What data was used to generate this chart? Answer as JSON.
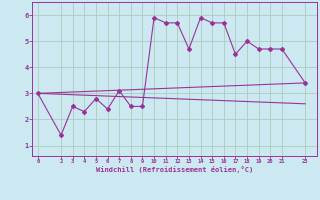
{
  "xlabel": "Windchill (Refroidissement éolien,°C)",
  "bg_color": "#cce8f0",
  "line_color": "#993399",
  "grid_color": "#aaccbb",
  "series1_x": [
    0,
    2,
    3,
    4,
    5,
    6,
    7,
    8,
    9,
    10,
    11,
    12,
    13,
    14,
    15,
    16,
    17,
    18,
    19,
    20,
    21,
    23
  ],
  "series1_y": [
    3.0,
    1.4,
    2.5,
    2.3,
    2.8,
    2.4,
    3.1,
    2.5,
    2.5,
    5.9,
    5.7,
    5.7,
    4.7,
    5.9,
    5.7,
    5.7,
    4.5,
    5.0,
    4.7,
    4.7,
    4.7,
    3.4
  ],
  "series2_x": [
    0,
    23
  ],
  "series2_y": [
    3.0,
    3.4
  ],
  "series3_x": [
    0,
    23
  ],
  "series3_y": [
    3.0,
    2.6
  ],
  "xticks": [
    0,
    2,
    3,
    4,
    5,
    6,
    7,
    8,
    9,
    10,
    11,
    12,
    13,
    14,
    15,
    16,
    17,
    18,
    19,
    20,
    21,
    23
  ],
  "yticks": [
    1,
    2,
    3,
    4,
    5,
    6
  ],
  "xlim": [
    -0.5,
    24.0
  ],
  "ylim": [
    0.6,
    6.5
  ]
}
